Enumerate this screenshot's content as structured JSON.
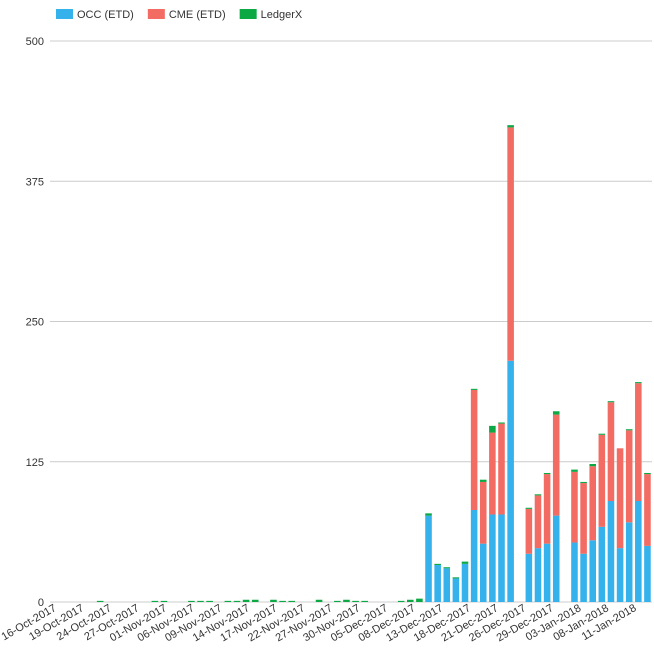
{
  "chart_data": {
    "type": "bar",
    "stacked": true,
    "grid": true,
    "legend_position": "top-left",
    "ylim": [
      0,
      500
    ],
    "yticks": [
      0,
      125,
      250,
      375,
      500
    ],
    "xtick_labels": [
      "16-Oct-2017",
      "19-Oct-2017",
      "24-Oct-2017",
      "27-Oct-2017",
      "01-Nov-2017",
      "06-Nov-2017",
      "09-Nov-2017",
      "14-Nov-2017",
      "17-Nov-2017",
      "22-Nov-2017",
      "27-Nov-2017",
      "30-Nov-2017",
      "05-Dec-2017",
      "08-Dec-2017",
      "13-Dec-2017",
      "18-Dec-2017",
      "21-Dec-2017",
      "26-Dec-2017",
      "29-Dec-2017",
      "03-Jan-2018",
      "08-Jan-2018",
      "11-Jan-2018"
    ],
    "legend": [
      {
        "name": "OCC (ETD)",
        "color": "#35b1ec"
      },
      {
        "name": "CME (ETD)",
        "color": "#f26c64"
      },
      {
        "name": "LedgerX",
        "color": "#0ca844"
      }
    ],
    "bars": [
      {
        "date": "16-Oct-2017",
        "occ": 0,
        "cme": 0,
        "ledgerx": 0
      },
      {
        "date": "17-Oct-2017",
        "occ": 0,
        "cme": 0,
        "ledgerx": 0
      },
      {
        "date": "18-Oct-2017",
        "occ": 0,
        "cme": 0,
        "ledgerx": 0
      },
      {
        "date": "19-Oct-2017",
        "occ": 0,
        "cme": 0,
        "ledgerx": 0
      },
      {
        "date": "20-Oct-2017",
        "occ": 0,
        "cme": 0,
        "ledgerx": 0
      },
      {
        "date": "23-Oct-2017",
        "occ": 0,
        "cme": 0,
        "ledgerx": 1
      },
      {
        "date": "24-Oct-2017",
        "occ": 0,
        "cme": 0,
        "ledgerx": 0
      },
      {
        "date": "25-Oct-2017",
        "occ": 0,
        "cme": 0,
        "ledgerx": 0
      },
      {
        "date": "26-Oct-2017",
        "occ": 0,
        "cme": 0,
        "ledgerx": 0
      },
      {
        "date": "27-Oct-2017",
        "occ": 0,
        "cme": 0,
        "ledgerx": 0
      },
      {
        "date": "30-Oct-2017",
        "occ": 0,
        "cme": 0,
        "ledgerx": 0
      },
      {
        "date": "31-Oct-2017",
        "occ": 0,
        "cme": 0,
        "ledgerx": 1
      },
      {
        "date": "01-Nov-2017",
        "occ": 0,
        "cme": 0,
        "ledgerx": 1
      },
      {
        "date": "02-Nov-2017",
        "occ": 0,
        "cme": 0,
        "ledgerx": 0
      },
      {
        "date": "03-Nov-2017",
        "occ": 0,
        "cme": 0,
        "ledgerx": 0
      },
      {
        "date": "06-Nov-2017",
        "occ": 0,
        "cme": 0,
        "ledgerx": 1
      },
      {
        "date": "07-Nov-2017",
        "occ": 0,
        "cme": 0,
        "ledgerx": 1
      },
      {
        "date": "08-Nov-2017",
        "occ": 0,
        "cme": 0,
        "ledgerx": 1
      },
      {
        "date": "09-Nov-2017",
        "occ": 0,
        "cme": 0,
        "ledgerx": 0
      },
      {
        "date": "10-Nov-2017",
        "occ": 0,
        "cme": 0,
        "ledgerx": 1
      },
      {
        "date": "13-Nov-2017",
        "occ": 0,
        "cme": 0,
        "ledgerx": 1
      },
      {
        "date": "14-Nov-2017",
        "occ": 0,
        "cme": 0,
        "ledgerx": 2
      },
      {
        "date": "15-Nov-2017",
        "occ": 0,
        "cme": 0,
        "ledgerx": 2
      },
      {
        "date": "16-Nov-2017",
        "occ": 0,
        "cme": 0,
        "ledgerx": 0
      },
      {
        "date": "17-Nov-2017",
        "occ": 0,
        "cme": 0,
        "ledgerx": 2
      },
      {
        "date": "20-Nov-2017",
        "occ": 0,
        "cme": 0,
        "ledgerx": 1
      },
      {
        "date": "21-Nov-2017",
        "occ": 0,
        "cme": 0,
        "ledgerx": 1
      },
      {
        "date": "22-Nov-2017",
        "occ": 0,
        "cme": 0,
        "ledgerx": 0
      },
      {
        "date": "24-Nov-2017",
        "occ": 0,
        "cme": 0,
        "ledgerx": 0
      },
      {
        "date": "27-Nov-2017",
        "occ": 0,
        "cme": 0,
        "ledgerx": 2
      },
      {
        "date": "28-Nov-2017",
        "occ": 0,
        "cme": 0,
        "ledgerx": 0
      },
      {
        "date": "29-Nov-2017",
        "occ": 0,
        "cme": 0,
        "ledgerx": 1
      },
      {
        "date": "30-Nov-2017",
        "occ": 0,
        "cme": 0,
        "ledgerx": 2
      },
      {
        "date": "01-Dec-2017",
        "occ": 0,
        "cme": 0,
        "ledgerx": 1
      },
      {
        "date": "04-Dec-2017",
        "occ": 0,
        "cme": 0,
        "ledgerx": 1
      },
      {
        "date": "05-Dec-2017",
        "occ": 0,
        "cme": 0,
        "ledgerx": 0
      },
      {
        "date": "06-Dec-2017",
        "occ": 0,
        "cme": 0,
        "ledgerx": 0
      },
      {
        "date": "07-Dec-2017",
        "occ": 0,
        "cme": 0,
        "ledgerx": 0
      },
      {
        "date": "08-Dec-2017",
        "occ": 0,
        "cme": 0,
        "ledgerx": 1
      },
      {
        "date": "11-Dec-2017",
        "occ": 0,
        "cme": 0,
        "ledgerx": 2
      },
      {
        "date": "12-Dec-2017",
        "occ": 0,
        "cme": 0,
        "ledgerx": 3
      },
      {
        "date": "13-Dec-2017",
        "occ": 77,
        "cme": 0,
        "ledgerx": 2
      },
      {
        "date": "14-Dec-2017",
        "occ": 33,
        "cme": 0,
        "ledgerx": 1
      },
      {
        "date": "15-Dec-2017",
        "occ": 30,
        "cme": 0,
        "ledgerx": 1
      },
      {
        "date": "18-Dec-2017",
        "occ": 21,
        "cme": 0,
        "ledgerx": 1
      },
      {
        "date": "19-Dec-2017",
        "occ": 34,
        "cme": 0,
        "ledgerx": 2
      },
      {
        "date": "20-Dec-2017",
        "occ": 82,
        "cme": 107,
        "ledgerx": 1
      },
      {
        "date": "21-Dec-2017",
        "occ": 52,
        "cme": 55,
        "ledgerx": 2
      },
      {
        "date": "22-Dec-2017",
        "occ": 78,
        "cme": 73,
        "ledgerx": 6
      },
      {
        "date": "26-Dec-2017",
        "occ": 78,
        "cme": 81,
        "ledgerx": 1
      },
      {
        "date": "27-Dec-2017",
        "occ": 215,
        "cme": 208,
        "ledgerx": 2
      },
      {
        "date": "28-Dec-2017",
        "occ": 0,
        "cme": 0,
        "ledgerx": 0
      },
      {
        "date": "29-Dec-2017",
        "occ": 43,
        "cme": 40,
        "ledgerx": 1
      },
      {
        "date": "02-Jan-2018",
        "occ": 48,
        "cme": 47,
        "ledgerx": 1
      },
      {
        "date": "03-Jan-2018",
        "occ": 52,
        "cme": 62,
        "ledgerx": 1
      },
      {
        "date": "04-Jan-2018",
        "occ": 77,
        "cme": 90,
        "ledgerx": 3
      },
      {
        "date": "05-Jan-2018",
        "occ": 0,
        "cme": 0,
        "ledgerx": 0
      },
      {
        "date": "08-Jan-2018",
        "occ": 53,
        "cme": 63,
        "ledgerx": 2
      },
      {
        "date": "09-Jan-2018",
        "occ": 43,
        "cme": 63,
        "ledgerx": 1
      },
      {
        "date": "10-Jan-2018",
        "occ": 55,
        "cme": 66,
        "ledgerx": 2
      },
      {
        "date": "11-Jan-2018",
        "occ": 67,
        "cme": 82,
        "ledgerx": 1
      },
      {
        "date": "12-Jan-2018",
        "occ": 90,
        "cme": 88,
        "ledgerx": 1
      },
      {
        "date": "16-Jan-2018",
        "occ": 48,
        "cme": 89,
        "ledgerx": 0
      },
      {
        "date": "17-Jan-2018",
        "occ": 71,
        "cme": 82,
        "ledgerx": 1
      },
      {
        "date": "18-Jan-2018",
        "occ": 90,
        "cme": 105,
        "ledgerx": 1
      },
      {
        "date": "19-Jan-2018",
        "occ": 50,
        "cme": 64,
        "ledgerx": 1
      }
    ]
  }
}
